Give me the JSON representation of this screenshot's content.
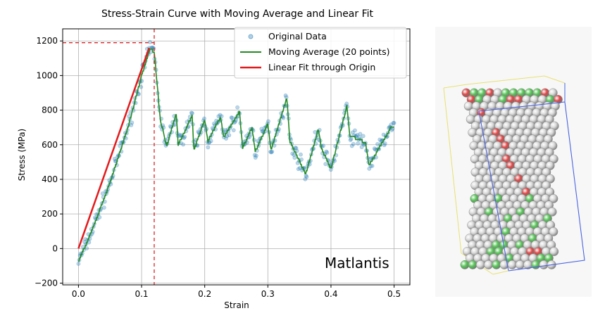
{
  "chart_data": {
    "type": "line",
    "title": "Stress-Strain Curve with Moving Average and Linear Fit",
    "xlabel": "Strain",
    "ylabel": "Stress (MPa)",
    "xlim": [
      -0.025,
      0.525
    ],
    "ylim": [
      -210,
      1270
    ],
    "xticks": [
      0.0,
      0.1,
      0.2,
      0.3,
      0.4,
      0.5
    ],
    "xtick_labels": [
      "0.0",
      "0.1",
      "0.2",
      "0.3",
      "0.4",
      "0.5"
    ],
    "yticks": [
      -200,
      0,
      200,
      400,
      600,
      800,
      1000,
      1200
    ],
    "ytick_labels": [
      "−200",
      "0",
      "200",
      "400",
      "600",
      "800",
      "1000",
      "1200"
    ],
    "grid": true,
    "legend_position": "top-right",
    "legend": [
      "Original Data",
      "Moving Average (20 points)",
      "Linear Fit through Origin"
    ],
    "colors": {
      "scatter": "#1f77b4",
      "moving_average": "#228b22",
      "linear_fit": "#e41a1c",
      "guide": "#d62728"
    },
    "linear_fit": {
      "x": [
        0.0,
        0.112
      ],
      "y": [
        0,
        1160
      ]
    },
    "peak_guides": {
      "strain": 0.12,
      "stress": 1190
    },
    "moving_average_anchors": [
      [
        0.0,
        -75
      ],
      [
        0.02,
        90
      ],
      [
        0.05,
        380
      ],
      [
        0.08,
        720
      ],
      [
        0.1,
        1000
      ],
      [
        0.113,
        1150
      ],
      [
        0.12,
        1140
      ],
      [
        0.125,
        930
      ],
      [
        0.13,
        740
      ],
      [
        0.14,
        590
      ],
      [
        0.145,
        660
      ],
      [
        0.155,
        780
      ],
      [
        0.158,
        600
      ],
      [
        0.165,
        650
      ],
      [
        0.18,
        770
      ],
      [
        0.183,
        570
      ],
      [
        0.2,
        745
      ],
      [
        0.205,
        620
      ],
      [
        0.225,
        760
      ],
      [
        0.23,
        640
      ],
      [
        0.255,
        790
      ],
      [
        0.26,
        580
      ],
      [
        0.275,
        700
      ],
      [
        0.28,
        560
      ],
      [
        0.3,
        720
      ],
      [
        0.305,
        570
      ],
      [
        0.33,
        870
      ],
      [
        0.335,
        620
      ],
      [
        0.36,
        430
      ],
      [
        0.38,
        690
      ],
      [
        0.385,
        580
      ],
      [
        0.4,
        460
      ],
      [
        0.425,
        820
      ],
      [
        0.43,
        650
      ],
      [
        0.445,
        630
      ],
      [
        0.455,
        610
      ],
      [
        0.46,
        480
      ],
      [
        0.468,
        530
      ],
      [
        0.495,
        700
      ]
    ],
    "scatter": {
      "count": 420,
      "x_range": [
        0.0,
        0.5
      ],
      "noise_stress": 45,
      "seed": 7
    }
  },
  "watermark": {
    "text": "Matlantis"
  },
  "simulation_image": {
    "description_icon": "atomic-nanopillar",
    "atom_colors": {
      "neutral": "#d9d9d9",
      "red": "#e04848",
      "green": "#58c858"
    },
    "box_colors": {
      "blue": "#4a64e0",
      "yellow": "#e8e070"
    }
  }
}
